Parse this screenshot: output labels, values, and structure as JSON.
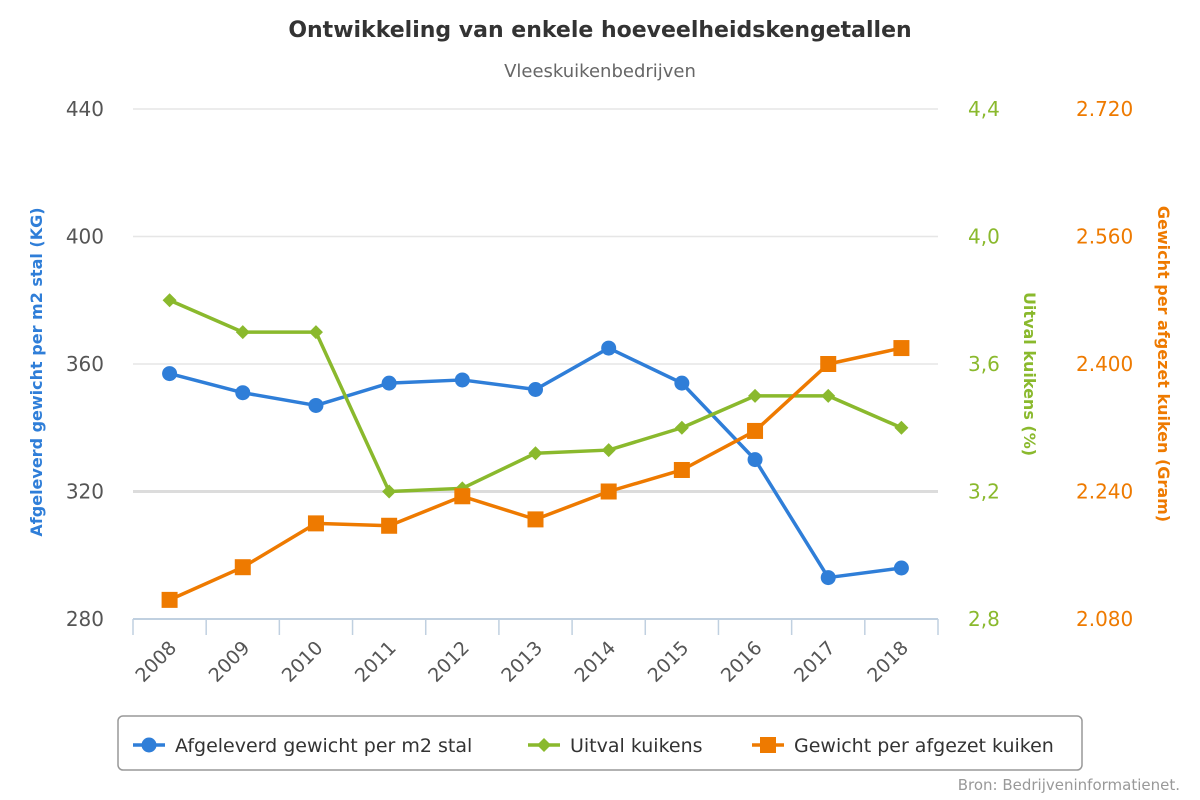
{
  "chart_data": {
    "type": "line",
    "title": "Ontwikkeling van enkele hoeveelheidskengetallen",
    "subtitle": "Vleeskuikenbedrijven",
    "credit": "Bron: Bedrijveninformatienet.",
    "categories": [
      "2008",
      "2009",
      "2010",
      "2011",
      "2012",
      "2013",
      "2014",
      "2015",
      "2016",
      "2017",
      "2018"
    ],
    "axes": {
      "left": {
        "label": "Afgeleverd gewicht per m2 stal (KG)",
        "ylim": [
          280,
          440
        ],
        "ticks": [
          "280",
          "320",
          "360",
          "400",
          "440"
        ],
        "color": "#555555"
      },
      "right1": {
        "label": "Uitval kuikens (%)",
        "ylim": [
          2.8,
          4.4
        ],
        "ticks": [
          "2,8",
          "3,2",
          "3,6",
          "4,0",
          "4,4"
        ],
        "color": "#8ab92d"
      },
      "right2": {
        "label": "Gewicht per afgezet kuiken (Gram)",
        "ylim": [
          2080,
          2720
        ],
        "ticks": [
          "2.080",
          "2.240",
          "2.400",
          "2.560",
          "2.720"
        ],
        "color": "#ee7a00"
      }
    },
    "series": [
      {
        "name": "Afgeleverd gewicht per m2 stal",
        "axis": "left",
        "color": "#2f7ed8",
        "marker": "circle",
        "values": [
          357,
          351,
          347,
          354,
          355,
          352,
          365,
          354,
          330,
          293,
          296
        ]
      },
      {
        "name": "Uitval kuikens",
        "axis": "right1",
        "color": "#8ab92d",
        "marker": "diamond",
        "values": [
          3.8,
          3.7,
          3.7,
          3.2,
          3.21,
          3.32,
          3.33,
          3.4,
          3.5,
          3.5,
          3.4
        ]
      },
      {
        "name": "Gewicht per afgezet kuiken",
        "axis": "right2",
        "color": "#ee7a00",
        "marker": "square",
        "values": [
          2104,
          2145,
          2200,
          2197,
          2234,
          2205,
          2240,
          2267,
          2316,
          2400,
          2420
        ]
      }
    ],
    "grid": true,
    "legend": "bottom-center"
  }
}
